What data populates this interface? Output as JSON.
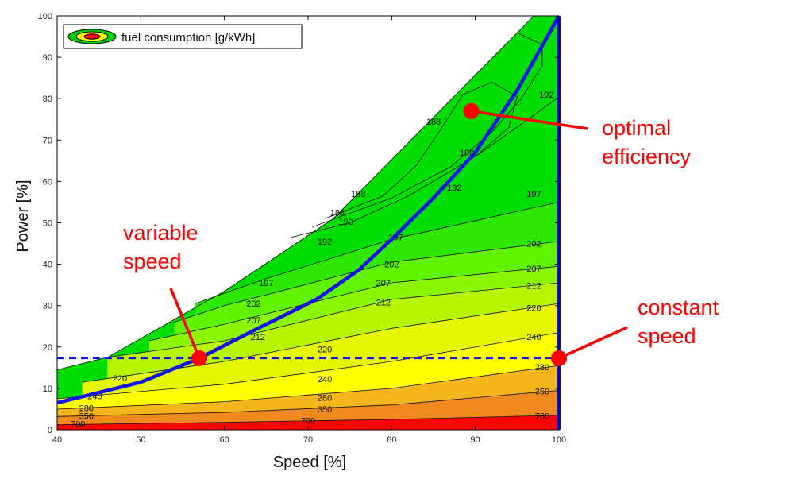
{
  "chart_data": {
    "type": "contour",
    "title": "",
    "xlabel": "Speed [%]",
    "ylabel": "Power [%]",
    "xlim": [
      40,
      100
    ],
    "ylim": [
      0,
      100
    ],
    "x_ticks": [
      40,
      50,
      60,
      70,
      80,
      90,
      100
    ],
    "y_ticks": [
      0,
      10,
      20,
      30,
      40,
      50,
      60,
      70,
      80,
      90,
      100
    ],
    "legend": {
      "label": "fuel consumption [g/kWh]",
      "position": "top-left"
    },
    "envelope": [
      [
        40,
        0
      ],
      [
        40,
        14.5
      ],
      [
        46,
        17.5
      ],
      [
        60,
        33.5
      ],
      [
        73,
        51
      ],
      [
        85,
        75.5
      ],
      [
        97,
        100
      ],
      [
        100,
        100
      ],
      [
        100,
        0
      ]
    ],
    "contours": [
      {
        "level": "700",
        "color": "#ff0000",
        "points": [
          [
            40,
            1.2
          ],
          [
            60,
            1.8
          ],
          [
            80,
            2.5
          ],
          [
            100,
            3.5
          ]
        ],
        "label_positions": [
          [
            42.5,
            1.4
          ],
          [
            70,
            2.2
          ],
          [
            98,
            3.4
          ]
        ]
      },
      {
        "level": "350",
        "color": "#f08a1e",
        "points": [
          [
            40,
            3.2
          ],
          [
            60,
            4.2
          ],
          [
            80,
            6.0
          ],
          [
            100,
            9.5
          ]
        ],
        "label_positions": [
          [
            43.5,
            3.4
          ],
          [
            72,
            5.0
          ],
          [
            98,
            9.3
          ]
        ]
      },
      {
        "level": "280",
        "color": "#f5b51d",
        "points": [
          [
            40,
            5
          ],
          [
            60,
            6.8
          ],
          [
            80,
            10.0
          ],
          [
            100,
            15.5
          ]
        ],
        "label_positions": [
          [
            43.5,
            5.3
          ],
          [
            72,
            7.8
          ],
          [
            98,
            15.2
          ]
        ]
      },
      {
        "level": "240",
        "color": "#ffff00",
        "points": [
          [
            40,
            7.5
          ],
          [
            60,
            11.0
          ],
          [
            80,
            16.5
          ],
          [
            100,
            23.5
          ]
        ],
        "label_positions": [
          [
            44.5,
            8.2
          ],
          [
            72,
            12.3
          ],
          [
            97,
            22.5
          ]
        ]
      },
      {
        "level": "220",
        "color": "#e6f700",
        "points": [
          [
            43,
            11.5
          ],
          [
            60,
            16.5
          ],
          [
            80,
            24.5
          ],
          [
            100,
            30.5
          ]
        ],
        "label_positions": [
          [
            47.5,
            12.5
          ],
          [
            72,
            19.5
          ],
          [
            97,
            29.5
          ]
        ]
      },
      {
        "level": "212",
        "color": "#b8f500",
        "points": [
          [
            46,
            17.5
          ],
          [
            60,
            21.5
          ],
          [
            80,
            31.5
          ],
          [
            100,
            35.5
          ]
        ],
        "label_positions": [
          [
            64,
            22.5
          ],
          [
            79,
            30.8
          ],
          [
            97,
            34.8
          ]
        ]
      },
      {
        "level": "207",
        "color": "#8cf500",
        "points": [
          [
            51,
            21.5
          ],
          [
            60,
            25.5
          ],
          [
            80,
            35.5
          ],
          [
            100,
            39.5
          ]
        ],
        "label_positions": [
          [
            63.5,
            26.5
          ],
          [
            79,
            35.5
          ],
          [
            97,
            39
          ]
        ]
      },
      {
        "level": "202",
        "color": "#60f200",
        "points": [
          [
            54,
            26
          ],
          [
            60,
            30
          ],
          [
            80,
            40.5
          ],
          [
            100,
            45.5
          ]
        ],
        "label_positions": [
          [
            63.5,
            30.5
          ],
          [
            80,
            40
          ],
          [
            97,
            45
          ]
        ]
      },
      {
        "level": "197",
        "color": "#2ee800",
        "points": [
          [
            56.5,
            30.5
          ],
          [
            65,
            36.5
          ],
          [
            80,
            46
          ],
          [
            100,
            55
          ]
        ],
        "label_positions": [
          [
            65,
            35.5
          ],
          [
            80.5,
            46.5
          ],
          [
            97,
            57
          ]
        ]
      },
      {
        "level": "192",
        "color": "#00e000",
        "points": [
          [
            68,
            46.5
          ],
          [
            75,
            50
          ],
          [
            82,
            56.5
          ],
          [
            90,
            66
          ],
          [
            97,
            76
          ],
          [
            100,
            80.5
          ]
        ],
        "label_positions": [
          [
            72,
            45.5
          ],
          [
            87.5,
            58.5
          ],
          [
            98.5,
            81
          ]
        ]
      },
      {
        "level": "190",
        "color": "#00dc00",
        "points": [
          [
            70.5,
            49
          ],
          [
            80,
            56
          ],
          [
            87,
            63.5
          ],
          [
            92,
            72
          ],
          [
            95.5,
            80
          ],
          [
            98,
            88
          ],
          [
            98,
            93
          ],
          [
            95,
            96
          ]
        ],
        "label_positions": [
          [
            74.5,
            50.3
          ],
          [
            89,
            67
          ]
        ]
      },
      {
        "level": "188",
        "color": "#00d800",
        "points": [
          [
            72,
            51
          ],
          [
            79,
            56.5
          ],
          [
            83,
            64
          ],
          [
            86,
            73
          ],
          [
            88.5,
            81
          ],
          [
            92,
            84
          ],
          [
            95,
            80.5
          ],
          [
            94,
            73
          ],
          [
            90,
            66
          ]
        ],
        "label_positions": [
          [
            73.5,
            52.5
          ],
          [
            85,
            74.5
          ],
          [
            76,
            57
          ]
        ]
      }
    ],
    "series": [
      {
        "name": "",
        "color": "#1414e8",
        "points": [
          [
            40,
            6.5
          ],
          [
            50,
            11.5
          ],
          [
            57,
            17.3
          ],
          [
            64,
            24.5
          ],
          [
            71,
            31.5
          ],
          [
            76,
            38.5
          ],
          [
            80,
            46
          ],
          [
            85,
            56
          ],
          [
            90,
            67
          ],
          [
            95,
            82
          ],
          [
            100,
            100
          ]
        ]
      },
      {
        "name": "",
        "color": "#1414e8",
        "points": [
          [
            100,
            0
          ],
          [
            100,
            100
          ]
        ]
      },
      {
        "name": "",
        "color": "#1414e8",
        "style": "dashed",
        "points": [
          [
            40,
            17.3
          ],
          [
            100,
            17.3
          ]
        ]
      }
    ],
    "points": [
      {
        "x": 57,
        "y": 17.3,
        "color": "#ff0000"
      },
      {
        "x": 89.5,
        "y": 77,
        "color": "#ff0000"
      },
      {
        "x": 100,
        "y": 17.3,
        "color": "#ff0000"
      }
    ],
    "annotations": [
      {
        "lines": [
          "optimal",
          "efficiency"
        ],
        "arrow_to": [
          89.5,
          77
        ]
      },
      {
        "lines": [
          "variable",
          "speed"
        ],
        "arrow_to": [
          57,
          17.3
        ]
      },
      {
        "lines": [
          "constant",
          "speed"
        ],
        "arrow_to": [
          100,
          17.3
        ]
      }
    ]
  }
}
